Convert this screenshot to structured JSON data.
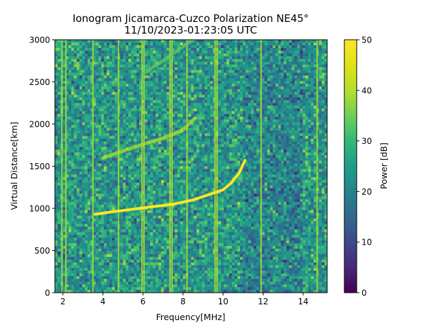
{
  "chart_data": {
    "type": "heatmap",
    "title_line1": "Ionogram Jicamarca-Cuzco Polarization NE45°",
    "title_line2": "11/10/2023-01:23:05 UTC",
    "xlabel": "Frequency[MHz]",
    "ylabel": "Virtual Distance[km]",
    "xlim": [
      1.6,
      15.2
    ],
    "ylim": [
      0,
      3000
    ],
    "xticks": [
      2,
      4,
      6,
      8,
      10,
      12,
      14
    ],
    "yticks": [
      0,
      500,
      1000,
      1500,
      2000,
      2500,
      3000
    ],
    "colorbar": {
      "label": "Power [dB]",
      "range": [
        0,
        50
      ],
      "ticks": [
        0,
        10,
        20,
        30,
        40,
        50
      ],
      "colormap": "viridis"
    },
    "background_level_db": 24,
    "vertical_interference_lines_mhz": [
      1.95,
      2.15,
      3.5,
      4.78,
      5.95,
      6.05,
      7.35,
      7.45,
      8.2,
      9.6,
      9.7,
      11.9,
      14.7
    ],
    "traces": [
      {
        "name": "first-hop echo",
        "power_db": 50,
        "points": [
          [
            3.6,
            930
          ],
          [
            4.5,
            960
          ],
          [
            5.5,
            990
          ],
          [
            6.5,
            1020
          ],
          [
            7.5,
            1050
          ],
          [
            8.5,
            1100
          ],
          [
            9.5,
            1180
          ],
          [
            10.0,
            1220
          ],
          [
            10.4,
            1300
          ],
          [
            10.8,
            1420
          ],
          [
            11.1,
            1570
          ]
        ]
      },
      {
        "name": "second-hop echo",
        "power_db": 40,
        "points": [
          [
            4.0,
            1600
          ],
          [
            5.0,
            1680
          ],
          [
            6.0,
            1760
          ],
          [
            7.0,
            1830
          ],
          [
            8.0,
            1930
          ],
          [
            8.6,
            2070
          ]
        ]
      },
      {
        "name": "third-hop echo",
        "power_db": 34,
        "points": [
          [
            6.0,
            2600
          ],
          [
            7.0,
            2750
          ],
          [
            8.0,
            2920
          ],
          [
            8.5,
            3000
          ]
        ]
      }
    ]
  }
}
